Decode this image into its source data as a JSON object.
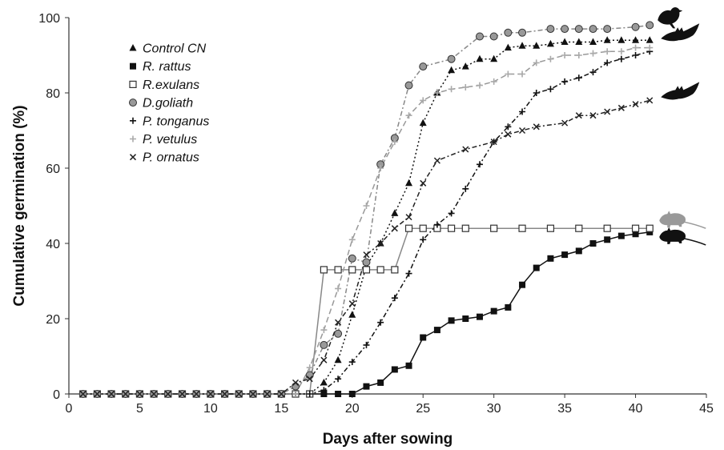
{
  "chart_data": {
    "type": "line",
    "title": "",
    "xlabel": "Days after sowing",
    "ylabel": "Cumulative germination (%)",
    "xlim": [
      0,
      45
    ],
    "ylim": [
      0,
      100
    ],
    "xticks": [
      0,
      5,
      10,
      15,
      20,
      25,
      30,
      35,
      40,
      45
    ],
    "yticks": [
      0,
      20,
      40,
      60,
      80,
      100
    ],
    "grid": false,
    "legend_position": "top-left",
    "series": [
      {
        "name": "Control CN",
        "color": "#111111",
        "dash": "2,3",
        "marker": "triangle-filled",
        "x": [
          1,
          2,
          3,
          4,
          5,
          6,
          7,
          8,
          9,
          10,
          11,
          12,
          13,
          14,
          15,
          16,
          17,
          18,
          19,
          20,
          21,
          22,
          23,
          24,
          25,
          26,
          27,
          28,
          29,
          30,
          31,
          32,
          33,
          34,
          35,
          36,
          37,
          38,
          39,
          40,
          41
        ],
        "y": [
          0,
          0,
          0,
          0,
          0,
          0,
          0,
          0,
          0,
          0,
          0,
          0,
          0,
          0,
          0,
          0,
          0,
          3,
          9,
          21,
          34,
          40,
          48,
          56,
          72,
          80,
          86,
          87,
          89,
          89,
          92,
          92.5,
          92.5,
          93,
          93.5,
          93.5,
          93.5,
          94,
          94,
          94,
          94
        ]
      },
      {
        "name": "R. rattus",
        "color": "#111111",
        "dash": "",
        "marker": "square-filled",
        "x": [
          1,
          2,
          3,
          4,
          5,
          6,
          7,
          8,
          9,
          10,
          11,
          12,
          13,
          14,
          15,
          16,
          17,
          18,
          19,
          20,
          21,
          22,
          23,
          24,
          25,
          26,
          27,
          28,
          29,
          30,
          31,
          32,
          33,
          34,
          35,
          36,
          37,
          38,
          39,
          40,
          41
        ],
        "y": [
          0,
          0,
          0,
          0,
          0,
          0,
          0,
          0,
          0,
          0,
          0,
          0,
          0,
          0,
          0,
          0,
          0,
          0,
          0,
          0,
          2,
          3,
          6.5,
          7.5,
          15,
          17,
          19.5,
          20,
          20.5,
          22,
          23,
          29,
          33.5,
          36,
          37,
          38,
          40,
          41,
          42,
          42.5,
          43
        ]
      },
      {
        "name": "R.exulans",
        "color": "#888888",
        "dash": "",
        "marker": "square-open",
        "x": [
          1,
          2,
          3,
          4,
          5,
          6,
          7,
          8,
          9,
          10,
          11,
          12,
          13,
          14,
          15,
          16,
          17,
          18,
          19,
          20,
          21,
          22,
          23,
          24,
          25,
          26,
          27,
          28,
          30,
          32,
          34,
          36,
          38,
          40,
          41
        ],
        "y": [
          0,
          0,
          0,
          0,
          0,
          0,
          0,
          0,
          0,
          0,
          0,
          0,
          0,
          0,
          0,
          0,
          0,
          33,
          33,
          33,
          33,
          33,
          33,
          44,
          44,
          44,
          44,
          44,
          44,
          44,
          44,
          44,
          44,
          44,
          44
        ]
      },
      {
        "name": "D.goliath",
        "color": "#888888",
        "dash": "6,3,2,3",
        "marker": "circle-gray",
        "x": [
          1,
          2,
          3,
          4,
          5,
          6,
          7,
          8,
          9,
          10,
          11,
          12,
          13,
          14,
          15,
          16,
          17,
          18,
          19,
          20,
          21,
          22,
          23,
          24,
          25,
          27,
          29,
          30,
          31,
          32,
          34,
          35,
          36,
          37,
          38,
          40,
          41
        ],
        "y": [
          0,
          0,
          0,
          0,
          0,
          0,
          0,
          0,
          0,
          0,
          0,
          0,
          0,
          0,
          0,
          2,
          5,
          13,
          16,
          36,
          35,
          61,
          68,
          82,
          87,
          89,
          95,
          95,
          96,
          96,
          97,
          97,
          97,
          97,
          97,
          97.5,
          98
        ]
      },
      {
        "name": "P. tonganus",
        "color": "#111111",
        "dash": "6,3,2,3",
        "marker": "plus-dark",
        "x": [
          1,
          2,
          3,
          4,
          5,
          6,
          7,
          8,
          9,
          10,
          11,
          12,
          13,
          14,
          15,
          16,
          17,
          18,
          19,
          20,
          21,
          22,
          23,
          24,
          25,
          26,
          27,
          28,
          29,
          30,
          31,
          32,
          33,
          34,
          35,
          36,
          37,
          38,
          39,
          40,
          41
        ],
        "y": [
          0,
          0,
          0,
          0,
          0,
          0,
          0,
          0,
          0,
          0,
          0,
          0,
          0,
          0,
          0,
          0,
          0,
          1,
          4,
          8.5,
          13,
          19,
          25.5,
          32,
          41,
          45,
          48,
          54.5,
          61,
          67,
          71,
          75,
          80,
          81,
          83,
          84,
          85.5,
          88,
          89,
          90,
          91
        ]
      },
      {
        "name": "P. vetulus",
        "color": "#999999",
        "dash": "7,4",
        "marker": "plus-light",
        "x": [
          1,
          2,
          3,
          4,
          5,
          6,
          7,
          8,
          9,
          10,
          11,
          12,
          13,
          14,
          15,
          16,
          17,
          18,
          19,
          20,
          21,
          22,
          23,
          24,
          25,
          26,
          27,
          28,
          29,
          30,
          31,
          32,
          33,
          34,
          35,
          36,
          37,
          38,
          39,
          40,
          41
        ],
        "y": [
          0,
          0,
          0,
          0,
          0,
          0,
          0,
          0,
          0,
          0,
          0,
          0,
          0,
          0,
          0,
          0,
          7,
          17,
          28,
          41,
          50,
          60,
          67,
          74,
          78,
          80,
          81,
          81.5,
          82,
          83,
          85,
          85,
          88,
          89,
          90,
          90,
          90.5,
          91,
          91,
          92,
          92
        ]
      },
      {
        "name": "P. ornatus",
        "color": "#222222",
        "dash": "6,3,2,3",
        "marker": "x-dark",
        "x": [
          1,
          2,
          3,
          4,
          5,
          6,
          7,
          8,
          9,
          10,
          11,
          12,
          13,
          14,
          15,
          16,
          17,
          18,
          19,
          20,
          21,
          22,
          23,
          24,
          25,
          26,
          28,
          30,
          31,
          32,
          33,
          35,
          36,
          37,
          38,
          39,
          40,
          41
        ],
        "y": [
          0,
          0,
          0,
          0,
          0,
          0,
          0,
          0,
          0,
          0,
          0,
          0,
          0,
          0,
          0,
          3,
          4,
          9,
          19,
          24,
          37,
          40,
          44,
          47,
          56,
          62,
          65,
          67,
          69,
          70,
          71,
          72,
          74,
          74,
          75,
          76,
          77,
          78
        ]
      }
    ],
    "silhouettes": [
      {
        "name": "bird-silhouette-icon",
        "series": "D.goliath",
        "color": "#111111"
      },
      {
        "name": "bat-silhouette-icon",
        "series": "Control CN",
        "color": "#111111"
      },
      {
        "name": "bat-silhouette-icon",
        "series": "P. ornatus",
        "color": "#111111"
      },
      {
        "name": "rat-silhouette-icon",
        "series": "R.exulans",
        "color": "#999999"
      },
      {
        "name": "rat-silhouette-icon",
        "series": "R. rattus",
        "color": "#111111"
      }
    ]
  }
}
